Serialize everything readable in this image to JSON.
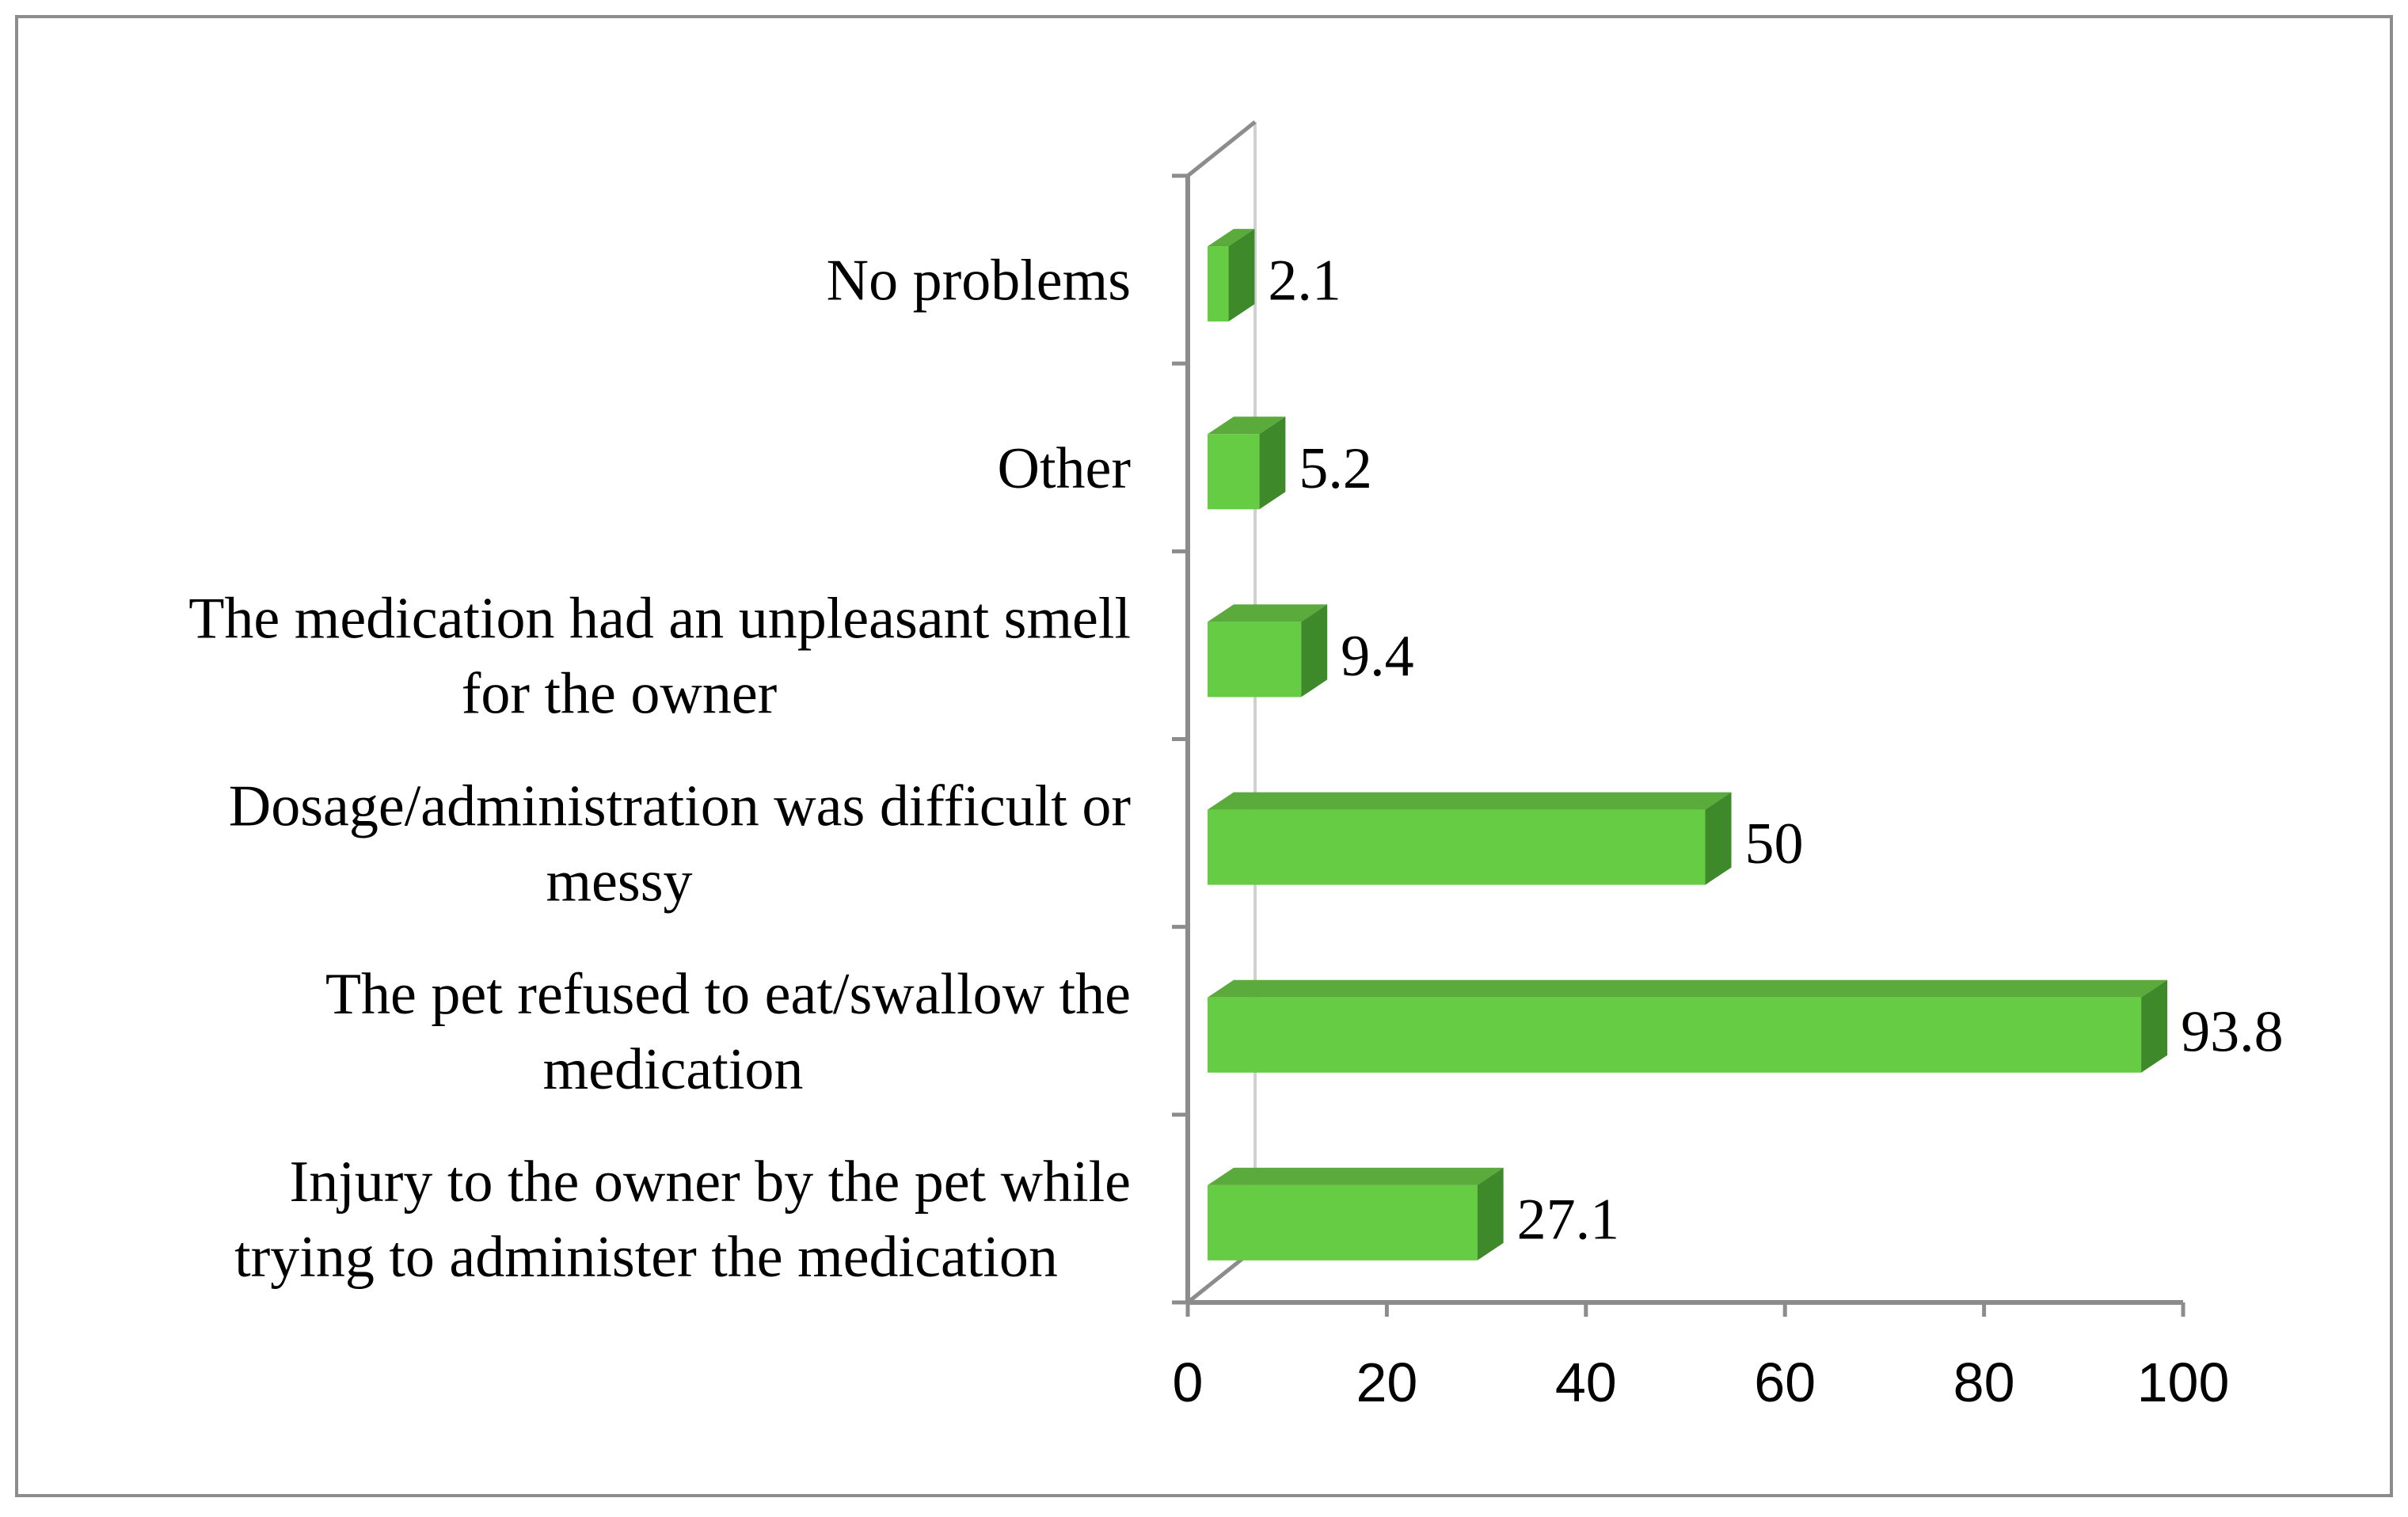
{
  "colors": {
    "bar_front": "#66cc44",
    "bar_top": "#5aaa3c",
    "bar_side": "#3e8a2a",
    "axis": "#8c8c8c",
    "wall": "#d0d0d0",
    "frame": "#8c8c8c"
  },
  "chart_data": {
    "type": "bar",
    "orientation": "horizontal",
    "style": "3d",
    "categories": [
      [
        "Injury to the owner by the pet while",
        "trying to administer the medication"
      ],
      [
        "The pet refused to eat/swallow the",
        "medication"
      ],
      [
        "Dosage/administration was difficult or",
        "messy"
      ],
      [
        "The medication had an unpleasant smell",
        "for the owner"
      ],
      [
        "Other"
      ],
      [
        "No problems"
      ]
    ],
    "values": [
      27.1,
      93.8,
      50,
      9.4,
      5.2,
      2.1
    ],
    "value_labels": [
      "27.1",
      "93.8",
      "50",
      "9.4",
      "5.2",
      "2.1"
    ],
    "xlim": [
      0,
      100
    ],
    "xticks": [
      "0",
      "20",
      "40",
      "60",
      "80",
      "100"
    ],
    "title": "",
    "xlabel": "",
    "ylabel": "",
    "grid": false,
    "legend": "none"
  }
}
